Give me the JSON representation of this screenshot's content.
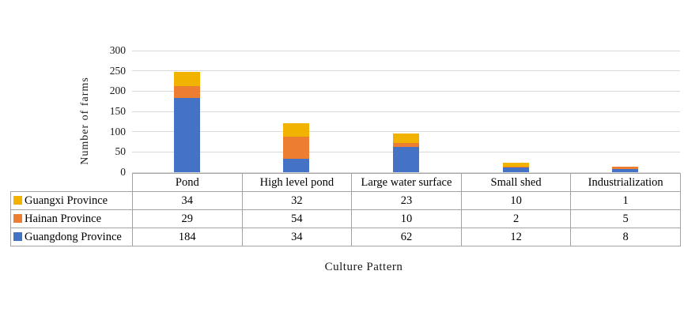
{
  "chart_data": {
    "type": "bar",
    "subtype": "stacked-vertical",
    "title": "",
    "xlabel": "Culture Pattern",
    "ylabel": "Number of  farms",
    "ylim": [
      0,
      300
    ],
    "ytick_interval": 50,
    "yticks": [
      0,
      50,
      100,
      150,
      200,
      250,
      300
    ],
    "grid": true,
    "legend_position": "table-left-column",
    "categories": [
      "Pond",
      "High level pond",
      "Large water surface",
      "Small shed",
      "Industrialization"
    ],
    "series": [
      {
        "name": "Guangxi Province",
        "color": "#f2b200",
        "values": [
          34,
          32,
          23,
          10,
          1
        ]
      },
      {
        "name": "Hainan Province",
        "color": "#ed7d31",
        "values": [
          29,
          54,
          10,
          2,
          5
        ]
      },
      {
        "name": "Guangdong Province",
        "color": "#4472c4",
        "values": [
          184,
          34,
          62,
          12,
          8
        ]
      }
    ],
    "stack_order_bottom_to_top": [
      "Guangdong Province",
      "Hainan Province",
      "Guangxi Province"
    ]
  },
  "colors": {
    "gridline": "#d9d9d9",
    "table_border": "#a3a3a3",
    "text": "#000000",
    "background": "#ffffff"
  }
}
